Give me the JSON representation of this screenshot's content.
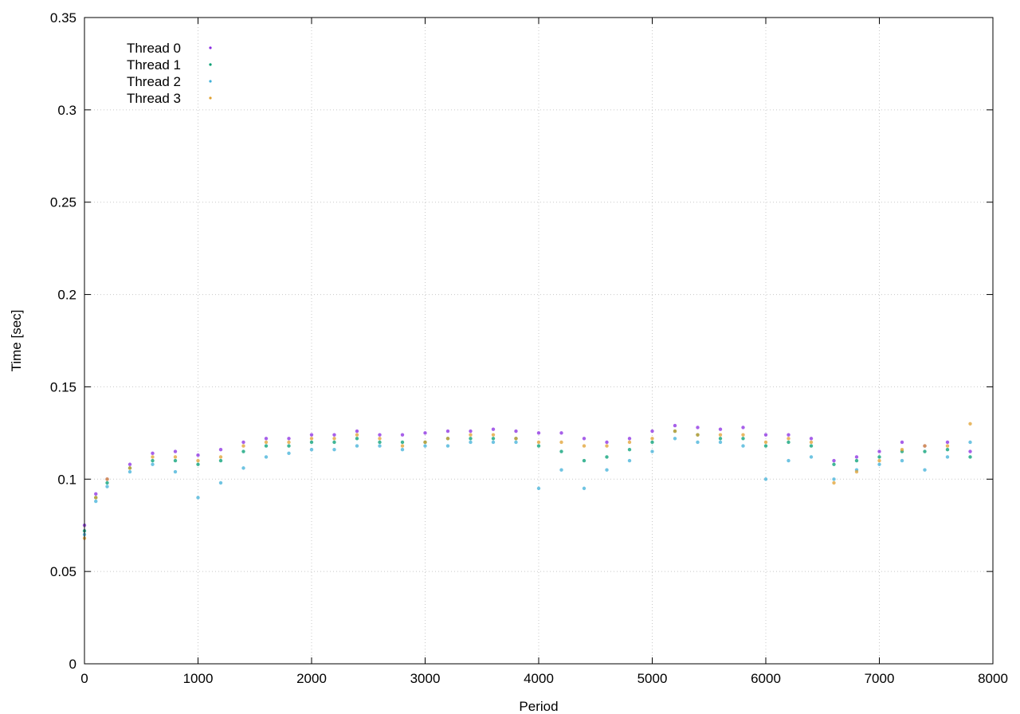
{
  "chart_data": {
    "type": "scatter",
    "xlabel": "Period",
    "ylabel": "Time [sec]",
    "xlim": [
      0,
      8000
    ],
    "ylim": [
      0,
      0.35
    ],
    "x_ticks": [
      "0",
      "1000",
      "2000",
      "3000",
      "4000",
      "5000",
      "6000",
      "7000",
      "8000"
    ],
    "y_ticks": [
      "0",
      "0.05",
      "0.1",
      "0.15",
      "0.2",
      "0.25",
      "0.3",
      "0.35"
    ],
    "grid": true,
    "legend_position": "top-left",
    "series": [
      {
        "name": "Thread 0",
        "color": "#8a2be2",
        "x": [
          0,
          100,
          200,
          400,
          600,
          800,
          1000,
          1200,
          1400,
          1600,
          1800,
          2000,
          2200,
          2400,
          2600,
          2800,
          3000,
          3200,
          3400,
          3600,
          3800,
          4000,
          4200,
          4400,
          4600,
          4800,
          5000,
          5200,
          5400,
          5600,
          5800,
          6000,
          6200,
          6400,
          6600,
          6800,
          7000,
          7200,
          7400,
          7600,
          7800
        ],
        "y": [
          0.075,
          0.092,
          0.1,
          0.108,
          0.114,
          0.115,
          0.113,
          0.116,
          0.12,
          0.122,
          0.122,
          0.124,
          0.124,
          0.126,
          0.124,
          0.124,
          0.125,
          0.126,
          0.126,
          0.127,
          0.126,
          0.125,
          0.125,
          0.122,
          0.12,
          0.122,
          0.126,
          0.129,
          0.128,
          0.127,
          0.128,
          0.124,
          0.124,
          0.122,
          0.11,
          0.112,
          0.115,
          0.12,
          0.118,
          0.12,
          0.115
        ]
      },
      {
        "name": "Thread 1",
        "color": "#009e73",
        "x": [
          0,
          100,
          200,
          400,
          600,
          800,
          1000,
          1200,
          1400,
          1600,
          1800,
          2000,
          2200,
          2400,
          2600,
          2800,
          3000,
          3200,
          3400,
          3600,
          3800,
          4000,
          4200,
          4400,
          4600,
          4800,
          5000,
          5200,
          5400,
          5600,
          5800,
          6000,
          6200,
          6400,
          6600,
          6800,
          7000,
          7200,
          7400,
          7600,
          7800
        ],
        "y": [
          0.072,
          0.09,
          0.098,
          0.106,
          0.11,
          0.11,
          0.108,
          0.11,
          0.115,
          0.118,
          0.118,
          0.12,
          0.12,
          0.122,
          0.12,
          0.12,
          0.12,
          0.122,
          0.122,
          0.122,
          0.122,
          0.118,
          0.115,
          0.11,
          0.112,
          0.116,
          0.12,
          0.126,
          0.124,
          0.122,
          0.122,
          0.118,
          0.12,
          0.118,
          0.108,
          0.11,
          0.112,
          0.115,
          0.115,
          0.116,
          0.112
        ]
      },
      {
        "name": "Thread 2",
        "color": "#3fb0d8",
        "x": [
          0,
          100,
          200,
          400,
          600,
          800,
          1000,
          1200,
          1400,
          1600,
          1800,
          2000,
          2200,
          2400,
          2600,
          2800,
          3000,
          3200,
          3400,
          3600,
          3800,
          4000,
          4200,
          4400,
          4600,
          4800,
          5000,
          5200,
          5400,
          5600,
          5800,
          6000,
          6200,
          6400,
          6600,
          6800,
          7000,
          7200,
          7400,
          7600,
          7800
        ],
        "y": [
          0.07,
          0.088,
          0.096,
          0.104,
          0.108,
          0.104,
          0.09,
          0.098,
          0.106,
          0.112,
          0.114,
          0.116,
          0.116,
          0.118,
          0.118,
          0.116,
          0.118,
          0.118,
          0.12,
          0.12,
          0.12,
          0.095,
          0.105,
          0.095,
          0.105,
          0.11,
          0.115,
          0.122,
          0.12,
          0.12,
          0.118,
          0.1,
          0.11,
          0.112,
          0.1,
          0.105,
          0.108,
          0.11,
          0.105,
          0.112,
          0.12
        ]
      },
      {
        "name": "Thread 3",
        "color": "#e0a030",
        "x": [
          0,
          100,
          200,
          400,
          600,
          800,
          1000,
          1200,
          1400,
          1600,
          1800,
          2000,
          2200,
          2400,
          2600,
          2800,
          3000,
          3200,
          3400,
          3600,
          3800,
          4000,
          4200,
          4400,
          4600,
          4800,
          5000,
          5200,
          5400,
          5600,
          5800,
          6000,
          6200,
          6400,
          6600,
          6800,
          7000,
          7200,
          7400,
          7600,
          7800
        ],
        "y": [
          0.068,
          0.09,
          0.1,
          0.106,
          0.112,
          0.112,
          0.11,
          0.112,
          0.118,
          0.12,
          0.12,
          0.122,
          0.122,
          0.124,
          0.122,
          0.118,
          0.12,
          0.122,
          0.124,
          0.124,
          0.122,
          0.12,
          0.12,
          0.118,
          0.118,
          0.12,
          0.122,
          0.126,
          0.124,
          0.124,
          0.124,
          0.12,
          0.122,
          0.12,
          0.098,
          0.104,
          0.11,
          0.116,
          0.118,
          0.118,
          0.13
        ]
      }
    ]
  }
}
